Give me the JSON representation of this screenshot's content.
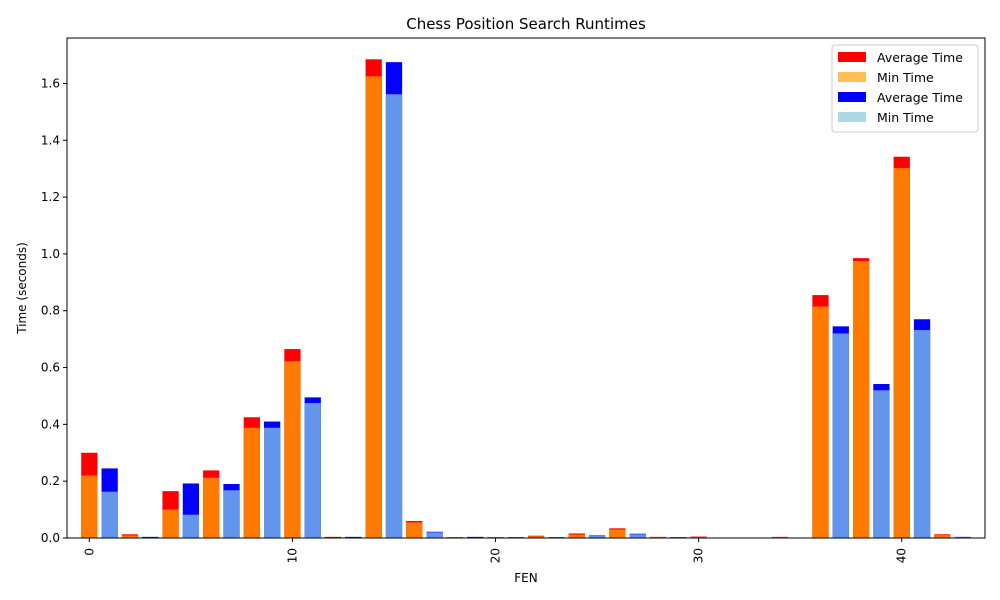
{
  "chart_data": {
    "type": "bar",
    "title": "Chess Position Search Runtimes",
    "xlabel": "FEN",
    "ylabel": "Time (seconds)",
    "xlim": [
      -1.1,
      44.1
    ],
    "ylim": [
      0,
      1.76
    ],
    "xticks": [
      0,
      10,
      20,
      30,
      40
    ],
    "yticks": [
      0.0,
      0.2,
      0.4,
      0.6,
      0.8,
      1.0,
      1.2,
      1.4,
      1.6
    ],
    "ytick_labels": [
      "0.0",
      "0.2",
      "0.4",
      "0.6",
      "0.8",
      "1.0",
      "1.2",
      "1.4",
      "1.6"
    ],
    "grid": false,
    "legend_position": "top-right",
    "legend": [
      {
        "label": "Average Time",
        "color": "#ff0000"
      },
      {
        "label": "Min Time",
        "color": "#ffbf55"
      },
      {
        "label": "Average Time",
        "color": "#0000ff"
      },
      {
        "label": "Min Time",
        "color": "#add8e6"
      }
    ],
    "bar_colors": {
      "avg_a": "#ff0000",
      "min_a": "#ff7a00",
      "avg_b": "#0000ff",
      "min_b": "#6495ed"
    },
    "series_a": {
      "x": [
        0,
        2,
        4,
        6,
        8,
        10,
        12,
        14,
        16,
        18,
        20,
        22,
        24,
        26,
        28,
        30,
        32,
        34,
        36,
        38,
        40,
        42
      ],
      "avg": [
        0.3,
        0.013,
        0.165,
        0.238,
        0.425,
        0.665,
        0.004,
        1.685,
        0.06,
        0.003,
        0.003,
        0.008,
        0.016,
        0.034,
        0.004,
        0.005,
        0.0,
        0.004,
        0.855,
        0.985,
        1.342,
        0.013
      ],
      "min": [
        0.22,
        0.009,
        0.1,
        0.212,
        0.388,
        0.622,
        0.002,
        1.625,
        0.055,
        0.002,
        0.002,
        0.006,
        0.012,
        0.03,
        0.003,
        0.003,
        0.0,
        0.003,
        0.815,
        0.975,
        1.302,
        0.01
      ]
    },
    "series_b": {
      "x": [
        1,
        3,
        5,
        7,
        9,
        11,
        13,
        15,
        17,
        19,
        21,
        23,
        25,
        27,
        29,
        31,
        33,
        35,
        37,
        39,
        41,
        43
      ],
      "avg": [
        0.245,
        0.004,
        0.192,
        0.19,
        0.41,
        0.495,
        0.004,
        1.675,
        0.022,
        0.004,
        0.003,
        0.003,
        0.009,
        0.015,
        0.003,
        0.0,
        0.0,
        0.0,
        0.745,
        0.542,
        0.77,
        0.004
      ],
      "min": [
        0.163,
        0.002,
        0.082,
        0.168,
        0.388,
        0.475,
        0.002,
        1.562,
        0.02,
        0.002,
        0.002,
        0.002,
        0.007,
        0.013,
        0.002,
        0.0,
        0.0,
        0.0,
        0.72,
        0.52,
        0.732,
        0.003
      ]
    }
  }
}
